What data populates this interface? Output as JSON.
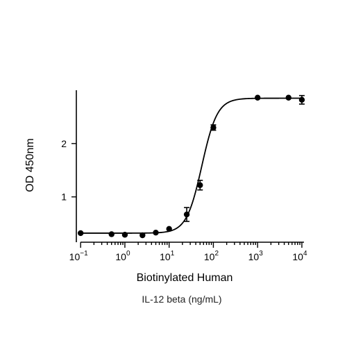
{
  "chart_data": {
    "type": "scatter",
    "title": "",
    "xlabel": "Biotinylated Human",
    "xlabel_line2": "IL-12 beta (ng/mL)",
    "ylabel": "OD 450nm",
    "x_scale": "log",
    "xlim": [
      0.08,
      12000
    ],
    "ylim": [
      0.15,
      3.0
    ],
    "x_ticks": [
      0.1,
      1,
      10,
      100,
      1000,
      10000
    ],
    "x_tick_labels": [
      {
        "base": "10",
        "exp": "−1"
      },
      {
        "base": "10",
        "exp": "0"
      },
      {
        "base": "10",
        "exp": "1"
      },
      {
        "base": "10",
        "exp": "2"
      },
      {
        "base": "10",
        "exp": "3"
      },
      {
        "base": "10",
        "exp": "4"
      }
    ],
    "y_ticks": [
      1,
      2
    ],
    "y_tick_labels": [
      "1",
      "2"
    ],
    "grid": false,
    "legend": "none",
    "color": "#000000",
    "fit": {
      "model": "4PL",
      "bottom": 0.32,
      "top": 2.85,
      "ec50": 55,
      "hill": 2.5
    },
    "series": [
      {
        "x": [
          0.1,
          0.5,
          1,
          2.5,
          5,
          10,
          25,
          50,
          100,
          1000,
          5000,
          10000
        ],
        "y": [
          0.32,
          0.3,
          0.29,
          0.28,
          0.33,
          0.4,
          0.67,
          1.22,
          2.3,
          2.86,
          2.86,
          2.82
        ],
        "err": [
          0.01,
          0.01,
          0.01,
          0.01,
          0.01,
          0.01,
          0.13,
          0.09,
          0.05,
          0.02,
          0.02,
          0.08
        ]
      }
    ]
  }
}
